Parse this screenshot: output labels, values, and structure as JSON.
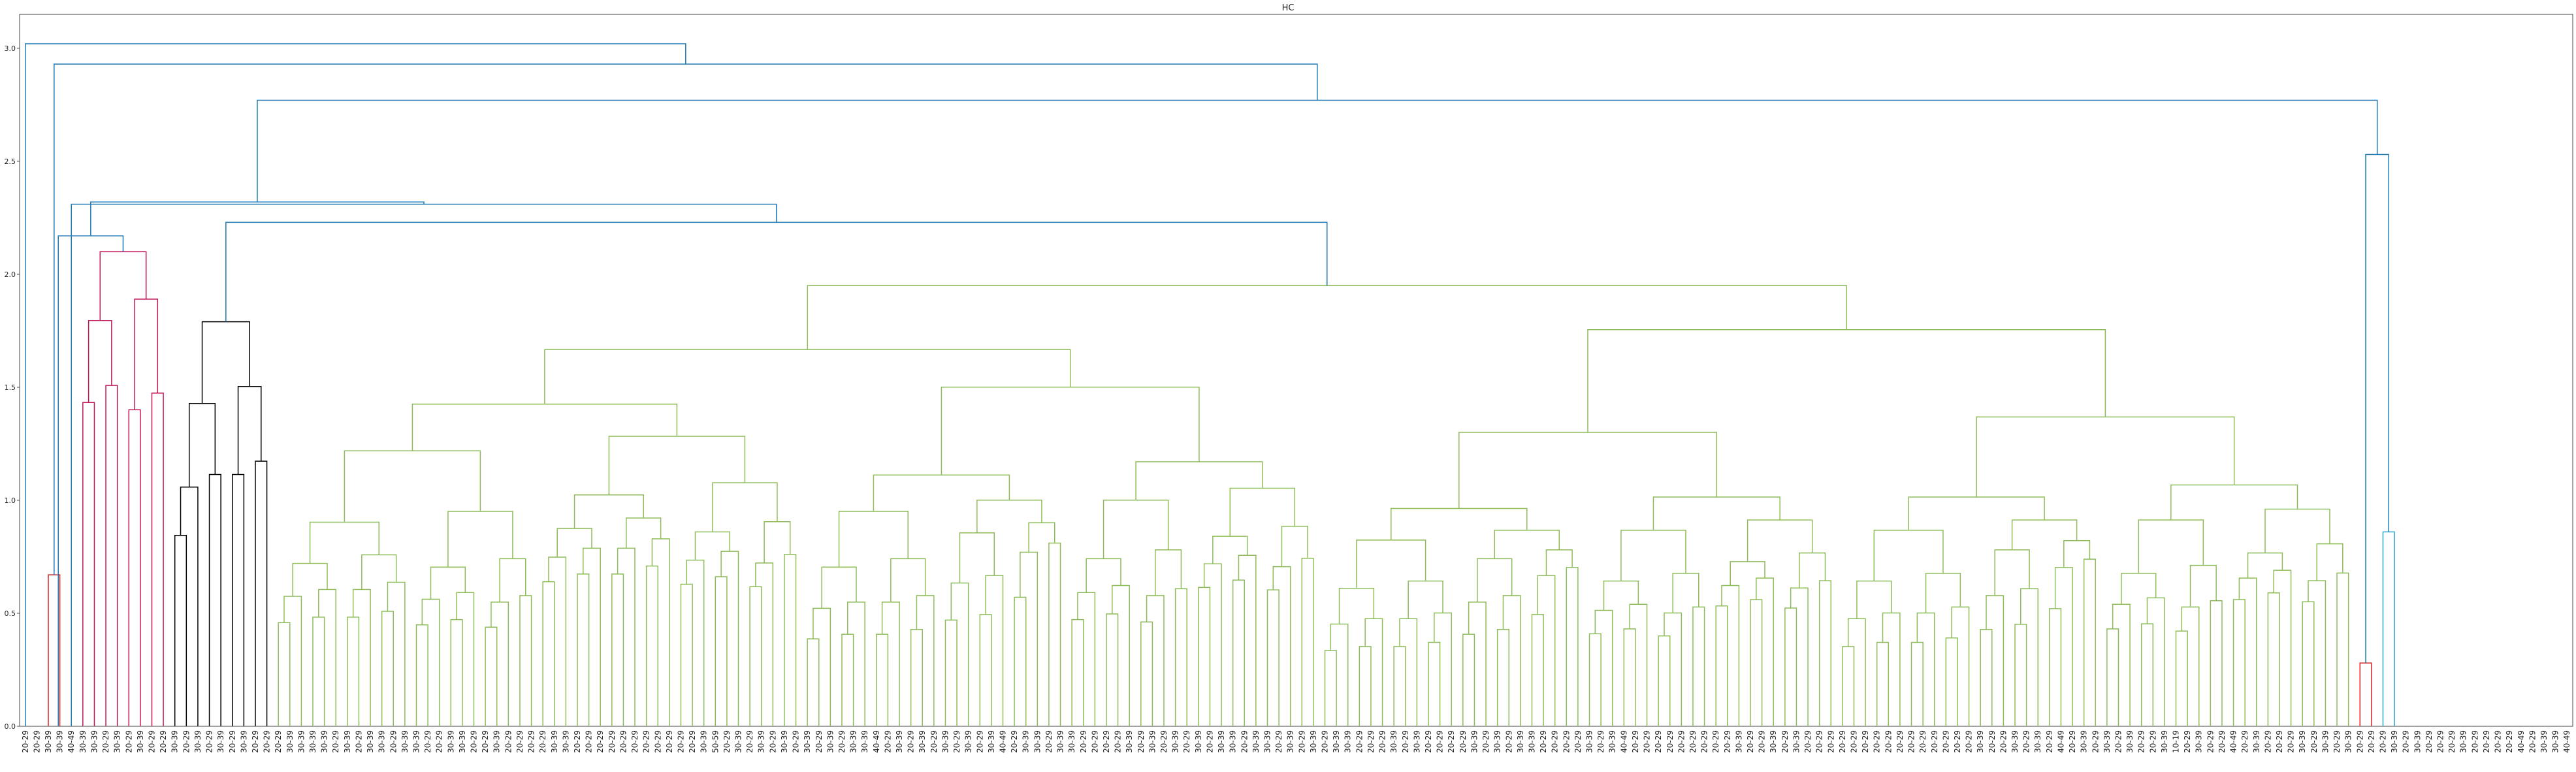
{
  "chart_data": {
    "type": "dendrogram",
    "title": "HC",
    "ylim": [
      0,
      3.15
    ],
    "yticks": [
      "0.0",
      "0.5",
      "1.0",
      "1.5",
      "2.0",
      "2.5",
      "3.0"
    ],
    "leaves": [
      "20-29",
      "20-29",
      "30-39",
      "30-39",
      "40-49",
      "30-39",
      "30-39",
      "20-29",
      "30-39",
      "20-29",
      "30-39",
      "20-29",
      "20-29",
      "30-39",
      "20-29",
      "30-39",
      "20-29",
      "30-39",
      "20-29",
      "30-39",
      "20-29",
      "20-29",
      "20-29",
      "30-39",
      "30-39",
      "30-39",
      "30-39",
      "20-29",
      "30-39",
      "20-29",
      "30-39",
      "30-39",
      "20-29",
      "30-39",
      "30-39",
      "20-29",
      "20-29",
      "30-39",
      "30-39",
      "20-29",
      "20-29",
      "30-39",
      "20-29",
      "20-29",
      "20-29",
      "20-29",
      "30-39",
      "30-39",
      "20-29",
      "20-29",
      "20-29",
      "20-29",
      "20-29",
      "20-29",
      "20-29",
      "20-29",
      "20-29",
      "20-29",
      "20-29",
      "30-39",
      "50-59",
      "20-29",
      "30-39",
      "20-29",
      "30-39",
      "20-29",
      "30-39",
      "20-29",
      "30-39",
      "20-29",
      "30-39",
      "20-29",
      "30-39",
      "30-39",
      "40-49",
      "20-29",
      "30-39",
      "20-29",
      "30-39",
      "20-29",
      "30-39",
      "20-29",
      "30-39",
      "20-29",
      "30-39",
      "40-49",
      "20-29",
      "30-39",
      "30-39",
      "20-29",
      "30-39",
      "30-39",
      "20-29",
      "20-29",
      "20-29",
      "20-29",
      "30-39",
      "20-29",
      "30-39",
      "20-29",
      "30-39",
      "20-29",
      "30-39",
      "20-29",
      "30-39",
      "30-39",
      "20-29",
      "30-39",
      "30-39",
      "20-29",
      "30-39",
      "20-29",
      "30-39",
      "20-29",
      "30-39",
      "30-39",
      "20-29",
      "20-29",
      "20-29",
      "30-39",
      "20-29",
      "30-39",
      "20-29",
      "20-29",
      "20-29",
      "20-29",
      "30-39",
      "20-29",
      "30-39",
      "20-29",
      "30-39",
      "30-39",
      "20-29",
      "20-29",
      "20-29",
      "20-29",
      "30-39",
      "20-29",
      "30-39",
      "40-49",
      "20-29",
      "20-29",
      "20-29",
      "20-29",
      "20-29",
      "20-29",
      "20-29",
      "20-29",
      "20-29",
      "30-39",
      "20-29",
      "20-29",
      "30-39",
      "20-29",
      "30-39",
      "20-29",
      "20-29",
      "20-29",
      "20-29",
      "20-29",
      "20-29",
      "20-29",
      "20-29",
      "20-29",
      "20-29",
      "20-29",
      "20-29",
      "20-29",
      "20-29",
      "20-29",
      "30-39",
      "20-29",
      "20-29",
      "30-39",
      "20-29",
      "30-39",
      "20-29",
      "40-49",
      "20-29",
      "30-39",
      "20-29",
      "30-39",
      "20-29",
      "30-39",
      "20-29",
      "20-29",
      "30-39",
      "10-19",
      "20-29",
      "30-39",
      "20-29",
      "20-29",
      "40-49",
      "20-29",
      "30-39",
      "20-29",
      "20-29",
      "20-29",
      "30-39",
      "20-29",
      "30-39",
      "20-29",
      "30-39",
      "20-29",
      "20-29",
      "20-29",
      "30-39",
      "20-29",
      "30-39",
      "20-29",
      "20-29",
      "20-29",
      "30-39",
      "20-29",
      "20-29",
      "20-29",
      "20-29",
      "40-49",
      "20-29",
      "30-39",
      "30-39",
      "40-49"
    ],
    "clusters": [
      {
        "name": "",
        "color": "#d62728",
        "range": [
          2,
          3
        ],
        "height": 0.67
      },
      {
        "name": "",
        "color": "#c2185b",
        "range": [
          5,
          12
        ],
        "height": 2.1
      },
      {
        "name": "",
        "color": "#000000",
        "range": [
          13,
          21
        ],
        "height": 1.79
      },
      {
        "name": "",
        "color": "#8fbc5a",
        "range": [
          22,
          202
        ],
        "height": 1.95
      },
      {
        "name": "",
        "color": "#d62728",
        "range": [
          203,
          204
        ],
        "height": 0.28
      },
      {
        "name": "",
        "color": "#2aa6c9",
        "range": [
          205,
          206
        ],
        "height": 0.86
      }
    ],
    "links": [
      {
        "x1": 0,
        "x2": 44,
        "h": 3.02,
        "color": "#1f77b4"
      },
      {
        "x1": 4,
        "x2": 84,
        "h": 2.93,
        "color": "#1f77b4"
      },
      {
        "x1": 16,
        "x2": 152,
        "h": 2.77,
        "color": "#1f77b4"
      },
      {
        "x1": 9,
        "x2": 24,
        "h": 2.32,
        "color": "#1f77b4"
      },
      {
        "x1": 17,
        "x2": 30,
        "h": 2.31,
        "color": "#1f77b4"
      },
      {
        "x1": 21,
        "x2": 40,
        "h": 2.23,
        "color": "#1f77b4"
      },
      {
        "x1": 7,
        "x2": 12,
        "h": 2.17,
        "color": "#1f77b4"
      },
      {
        "x1": 150,
        "x2": 153,
        "h": 2.53,
        "color": "#1f77b4"
      }
    ]
  }
}
